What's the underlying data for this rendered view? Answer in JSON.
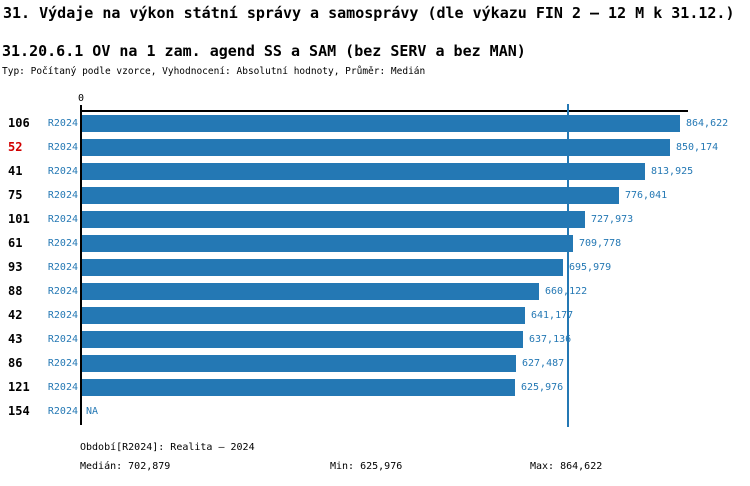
{
  "title": "31. Výdaje na výkon státní správy a samosprávy (dle výkazu FIN 2 – 12 M k 31.12.)",
  "subtitle": "31.20.6.1 OV na 1 zam. agend SS a SAM (bez SERV a bez MAN)",
  "meta_line": "Typ: Počítaný podle vzorce, Vyhodnocení: Absolutní hodnoty, Průměr: Medián",
  "chart_data": {
    "type": "bar",
    "orientation": "horizontal",
    "axis_zero_label": "0",
    "xlim": [
      0,
      872000
    ],
    "median": 702879,
    "bar_color": "#2478b4",
    "text_blue": "#2478b4",
    "highlight_color": "#d10000",
    "rows": [
      {
        "org": "106",
        "period": "R2024",
        "value": 864622,
        "value_label": "864,622",
        "highlight": false
      },
      {
        "org": "52",
        "period": "R2024",
        "value": 850174,
        "value_label": "850,174",
        "highlight": true
      },
      {
        "org": "41",
        "period": "R2024",
        "value": 813925,
        "value_label": "813,925",
        "highlight": false
      },
      {
        "org": "75",
        "period": "R2024",
        "value": 776041,
        "value_label": "776,041",
        "highlight": false
      },
      {
        "org": "101",
        "period": "R2024",
        "value": 727973,
        "value_label": "727,973",
        "highlight": false
      },
      {
        "org": "61",
        "period": "R2024",
        "value": 709778,
        "value_label": "709,778",
        "highlight": false
      },
      {
        "org": "93",
        "period": "R2024",
        "value": 695979,
        "value_label": "695,979",
        "highlight": false
      },
      {
        "org": "88",
        "period": "R2024",
        "value": 660122,
        "value_label": "660,122",
        "highlight": false
      },
      {
        "org": "42",
        "period": "R2024",
        "value": 641177,
        "value_label": "641,177",
        "highlight": false
      },
      {
        "org": "43",
        "period": "R2024",
        "value": 637136,
        "value_label": "637,136",
        "highlight": false
      },
      {
        "org": "86",
        "period": "R2024",
        "value": 627487,
        "value_label": "627,487",
        "highlight": false
      },
      {
        "org": "121",
        "period": "R2024",
        "value": 625976,
        "value_label": "625,976",
        "highlight": false
      },
      {
        "org": "154",
        "period": "R2024",
        "value": null,
        "value_label": "NA",
        "highlight": false
      }
    ]
  },
  "footer": {
    "period_line": "Období[R2024]: Realita – 2024",
    "median_label": "Medián: 702,879",
    "min_label": "Min: 625,976",
    "max_label": "Max: 864,622"
  }
}
